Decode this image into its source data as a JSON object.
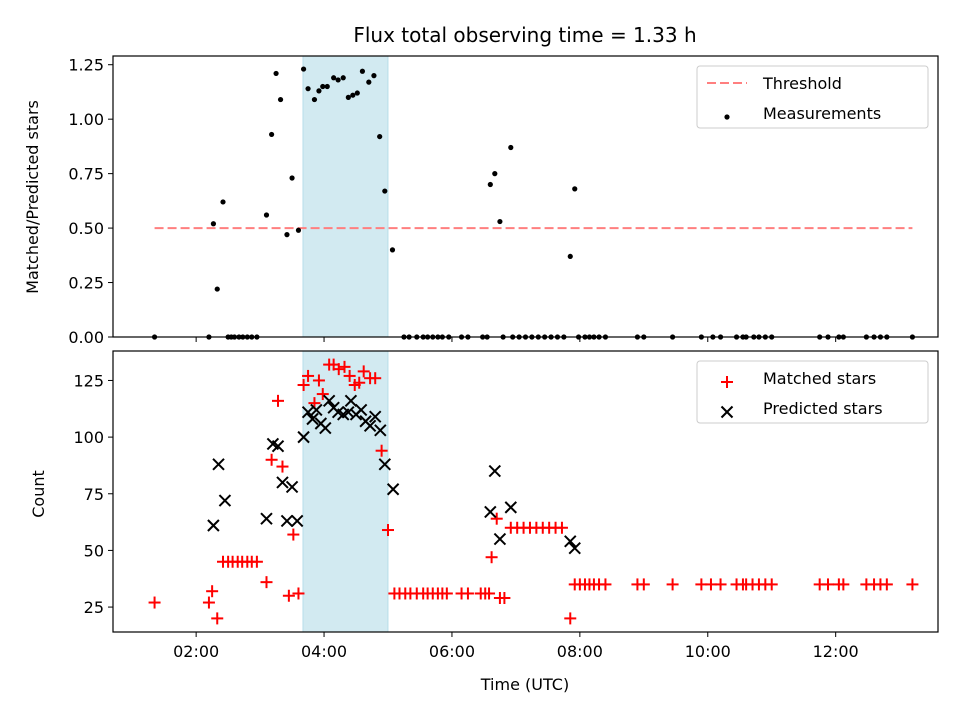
{
  "chart_data": [
    {
      "type": "scatter",
      "title": "Flux total observing time = 1.33 h",
      "xlabel": "",
      "ylabel": "Matched/Predicted stars",
      "xlim": [
        0.7,
        13.6
      ],
      "ylim": [
        0,
        1.29
      ],
      "yticks": [
        0,
        0.25,
        0.5,
        0.75,
        1.0,
        1.25
      ],
      "ytick_labels": [
        "0.00",
        "0.25",
        "0.50",
        "0.75",
        "1.00",
        "1.25"
      ],
      "highlight_span": [
        3.67,
        5.0
      ],
      "threshold": {
        "name": "Threshold",
        "y": 0.5,
        "x": [
          1.35,
          13.2
        ],
        "color": "#ff7f7f"
      },
      "legend": {
        "position": "top-right",
        "entries": [
          "Threshold",
          "Measurements"
        ]
      },
      "series": [
        {
          "name": "Measurements",
          "color": "#000000",
          "points": [
            [
              1.35,
              0
            ],
            [
              2.2,
              0
            ],
            [
              2.27,
              0.52
            ],
            [
              2.33,
              0.22
            ],
            [
              2.42,
              0.62
            ],
            [
              2.5,
              0
            ],
            [
              2.55,
              0
            ],
            [
              2.6,
              0
            ],
            [
              2.67,
              0
            ],
            [
              2.73,
              0
            ],
            [
              2.8,
              0
            ],
            [
              2.87,
              0
            ],
            [
              2.95,
              0
            ],
            [
              3.1,
              0.56
            ],
            [
              3.18,
              0.93
            ],
            [
              3.25,
              1.21
            ],
            [
              3.32,
              1.09
            ],
            [
              3.42,
              0.47
            ],
            [
              3.5,
              0.73
            ],
            [
              3.6,
              0.49
            ],
            [
              3.68,
              1.23
            ],
            [
              3.75,
              1.14
            ],
            [
              3.85,
              1.09
            ],
            [
              3.92,
              1.13
            ],
            [
              3.98,
              1.15
            ],
            [
              4.05,
              1.15
            ],
            [
              4.15,
              1.19
            ],
            [
              4.22,
              1.18
            ],
            [
              4.3,
              1.19
            ],
            [
              4.38,
              1.1
            ],
            [
              4.45,
              1.11
            ],
            [
              4.52,
              1.12
            ],
            [
              4.6,
              1.22
            ],
            [
              4.7,
              1.17
            ],
            [
              4.78,
              1.2
            ],
            [
              4.87,
              0.92
            ],
            [
              4.95,
              0.67
            ],
            [
              5.07,
              0.4
            ],
            [
              5.25,
              0
            ],
            [
              5.33,
              0
            ],
            [
              5.45,
              0
            ],
            [
              5.55,
              0
            ],
            [
              5.62,
              0
            ],
            [
              5.7,
              0
            ],
            [
              5.78,
              0
            ],
            [
              5.85,
              0
            ],
            [
              5.95,
              0
            ],
            [
              6.15,
              0
            ],
            [
              6.25,
              0
            ],
            [
              6.48,
              0
            ],
            [
              6.55,
              0
            ],
            [
              6.6,
              0.7
            ],
            [
              6.67,
              0.75
            ],
            [
              6.75,
              0.53
            ],
            [
              6.92,
              0.87
            ],
            [
              6.8,
              0
            ],
            [
              6.95,
              0
            ],
            [
              7.05,
              0
            ],
            [
              7.15,
              0
            ],
            [
              7.25,
              0
            ],
            [
              7.35,
              0
            ],
            [
              7.45,
              0
            ],
            [
              7.55,
              0
            ],
            [
              7.65,
              0
            ],
            [
              7.75,
              0
            ],
            [
              7.85,
              0.37
            ],
            [
              7.92,
              0.68
            ],
            [
              7.98,
              0
            ],
            [
              8.08,
              0
            ],
            [
              8.15,
              0
            ],
            [
              8.22,
              0
            ],
            [
              8.3,
              0
            ],
            [
              8.4,
              0
            ],
            [
              8.9,
              0
            ],
            [
              9.0,
              0
            ],
            [
              9.45,
              0
            ],
            [
              9.9,
              0
            ],
            [
              10.08,
              0
            ],
            [
              10.2,
              0
            ],
            [
              10.45,
              0
            ],
            [
              10.55,
              0
            ],
            [
              10.6,
              0
            ],
            [
              10.72,
              0
            ],
            [
              10.8,
              0
            ],
            [
              10.9,
              0
            ],
            [
              11.0,
              0
            ],
            [
              11.75,
              0
            ],
            [
              11.88,
              0
            ],
            [
              12.05,
              0
            ],
            [
              12.12,
              0
            ],
            [
              12.48,
              0
            ],
            [
              12.6,
              0
            ],
            [
              12.7,
              0
            ],
            [
              12.8,
              0
            ],
            [
              13.2,
              0
            ]
          ]
        }
      ]
    },
    {
      "type": "scatter",
      "title": "",
      "xlabel": "Time (UTC)",
      "ylabel": "Count",
      "xlim": [
        0.7,
        13.6
      ],
      "ylim": [
        14,
        138
      ],
      "xticks": [
        2,
        4,
        6,
        8,
        10,
        12
      ],
      "xtick_labels": [
        "02:00",
        "04:00",
        "06:00",
        "08:00",
        "10:00",
        "12:00"
      ],
      "yticks": [
        25,
        50,
        75,
        100,
        125
      ],
      "ytick_labels": [
        "25",
        "50",
        "75",
        "100",
        "125"
      ],
      "highlight_span": [
        3.67,
        5.0
      ],
      "legend": {
        "position": "top-right",
        "entries": [
          "Matched stars",
          "Predicted stars"
        ]
      },
      "series": [
        {
          "name": "Matched stars",
          "marker": "plus",
          "color": "#ff0000",
          "points": [
            [
              1.35,
              27
            ],
            [
              2.2,
              27
            ],
            [
              2.25,
              32
            ],
            [
              2.33,
              20
            ],
            [
              2.42,
              45
            ],
            [
              2.5,
              45
            ],
            [
              2.57,
              45
            ],
            [
              2.65,
              45
            ],
            [
              2.72,
              45
            ],
            [
              2.8,
              45
            ],
            [
              2.87,
              45
            ],
            [
              2.95,
              45
            ],
            [
              3.1,
              36
            ],
            [
              3.18,
              90
            ],
            [
              3.28,
              116
            ],
            [
              3.35,
              87
            ],
            [
              3.45,
              30
            ],
            [
              3.52,
              57
            ],
            [
              3.6,
              31
            ],
            [
              3.68,
              123
            ],
            [
              3.75,
              127
            ],
            [
              3.85,
              115
            ],
            [
              3.92,
              125
            ],
            [
              3.98,
              119
            ],
            [
              4.08,
              132
            ],
            [
              4.15,
              132
            ],
            [
              4.23,
              130
            ],
            [
              4.32,
              131
            ],
            [
              4.4,
              127
            ],
            [
              4.48,
              123
            ],
            [
              4.55,
              124
            ],
            [
              4.62,
              129
            ],
            [
              4.72,
              126
            ],
            [
              4.8,
              126
            ],
            [
              4.9,
              94
            ],
            [
              5.0,
              59
            ],
            [
              5.1,
              31
            ],
            [
              5.18,
              31
            ],
            [
              5.27,
              31
            ],
            [
              5.35,
              31
            ],
            [
              5.45,
              31
            ],
            [
              5.55,
              31
            ],
            [
              5.62,
              31
            ],
            [
              5.7,
              31
            ],
            [
              5.78,
              31
            ],
            [
              5.85,
              31
            ],
            [
              5.92,
              31
            ],
            [
              6.15,
              31
            ],
            [
              6.25,
              31
            ],
            [
              6.45,
              31
            ],
            [
              6.52,
              31
            ],
            [
              6.58,
              31
            ],
            [
              6.62,
              47
            ],
            [
              6.7,
              64
            ],
            [
              6.75,
              29
            ],
            [
              6.82,
              29
            ],
            [
              6.92,
              60
            ],
            [
              7.02,
              60
            ],
            [
              7.12,
              60
            ],
            [
              7.22,
              60
            ],
            [
              7.32,
              60
            ],
            [
              7.42,
              60
            ],
            [
              7.52,
              60
            ],
            [
              7.62,
              60
            ],
            [
              7.72,
              60
            ],
            [
              7.85,
              20
            ],
            [
              7.92,
              35
            ],
            [
              8.0,
              35
            ],
            [
              8.08,
              35
            ],
            [
              8.15,
              35
            ],
            [
              8.22,
              35
            ],
            [
              8.3,
              35
            ],
            [
              8.4,
              35
            ],
            [
              8.9,
              35
            ],
            [
              9.0,
              35
            ],
            [
              9.45,
              35
            ],
            [
              9.9,
              35
            ],
            [
              10.05,
              35
            ],
            [
              10.2,
              35
            ],
            [
              10.45,
              35
            ],
            [
              10.55,
              35
            ],
            [
              10.6,
              35
            ],
            [
              10.7,
              35
            ],
            [
              10.8,
              35
            ],
            [
              10.9,
              35
            ],
            [
              11.0,
              35
            ],
            [
              11.75,
              35
            ],
            [
              11.88,
              35
            ],
            [
              12.05,
              35
            ],
            [
              12.12,
              35
            ],
            [
              12.48,
              35
            ],
            [
              12.6,
              35
            ],
            [
              12.7,
              35
            ],
            [
              12.8,
              35
            ],
            [
              13.2,
              35
            ]
          ]
        },
        {
          "name": "Predicted stars",
          "marker": "x",
          "color": "#000000",
          "points": [
            [
              2.27,
              61
            ],
            [
              2.35,
              88
            ],
            [
              2.45,
              72
            ],
            [
              3.1,
              64
            ],
            [
              3.2,
              97
            ],
            [
              3.28,
              96
            ],
            [
              3.35,
              80
            ],
            [
              3.42,
              63
            ],
            [
              3.5,
              78
            ],
            [
              3.58,
              63
            ],
            [
              3.68,
              100
            ],
            [
              3.75,
              111
            ],
            [
              3.82,
              108
            ],
            [
              3.88,
              112
            ],
            [
              3.95,
              106
            ],
            [
              4.02,
              104
            ],
            [
              4.08,
              116
            ],
            [
              4.15,
              113
            ],
            [
              4.22,
              111
            ],
            [
              4.3,
              110
            ],
            [
              4.38,
              111
            ],
            [
              4.42,
              116
            ],
            [
              4.5,
              110
            ],
            [
              4.58,
              112
            ],
            [
              4.65,
              107
            ],
            [
              4.72,
              105
            ],
            [
              4.8,
              109
            ],
            [
              4.88,
              103
            ],
            [
              4.95,
              88
            ],
            [
              5.08,
              77
            ],
            [
              6.6,
              67
            ],
            [
              6.67,
              85
            ],
            [
              6.75,
              55
            ],
            [
              6.92,
              69
            ],
            [
              7.85,
              54
            ],
            [
              7.92,
              51
            ]
          ]
        }
      ]
    }
  ]
}
